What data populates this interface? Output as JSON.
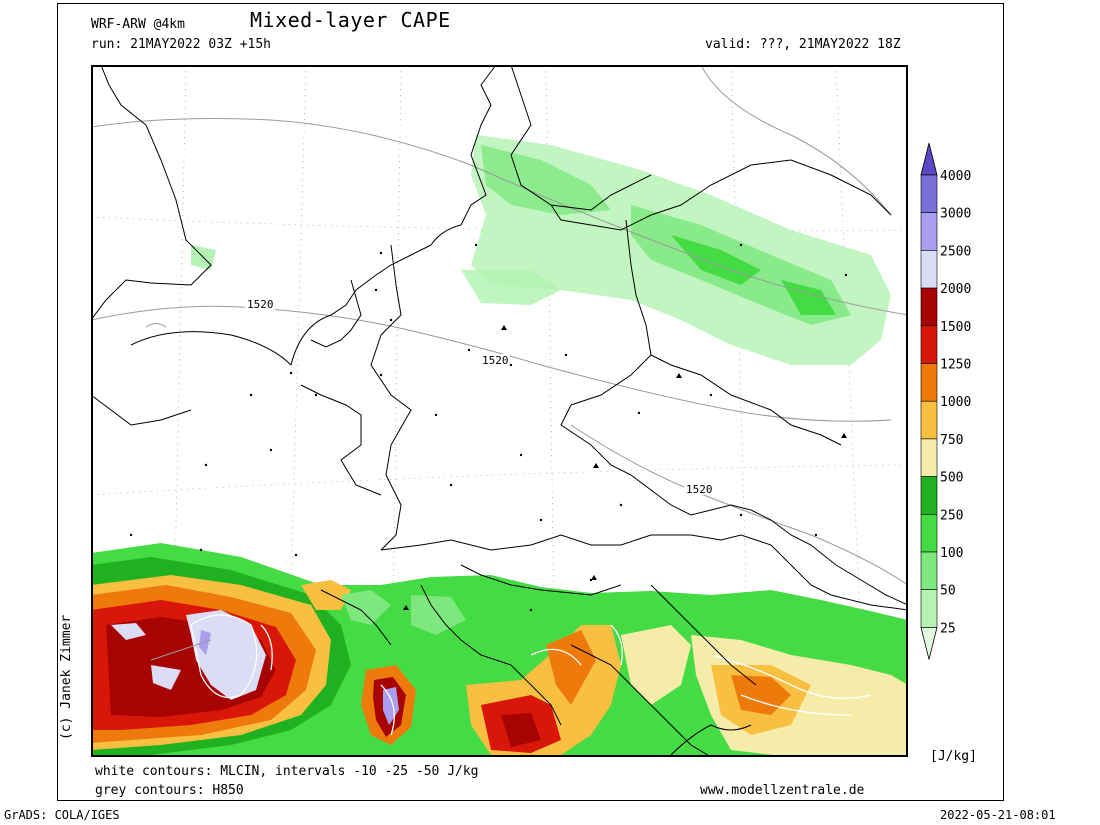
{
  "header": {
    "model": "WRF-ARW @4km",
    "title": "Mixed-layer CAPE",
    "run": "run: 21MAY2022 03Z +15h",
    "valid": "valid: ???, 21MAY2022 18Z"
  },
  "map": {
    "contour_label": "1520",
    "colors": {
      "ocean_bg": "#ffffff",
      "border": "#000000",
      "grey_contour": "#9a9a9a",
      "grid": "#9a9a9a"
    }
  },
  "legend": {
    "levels": [
      "25",
      "50",
      "100",
      "250",
      "500",
      "750",
      "1000",
      "1250",
      "1500",
      "2000",
      "2500",
      "3000",
      "4000"
    ],
    "colors": [
      "#e0fbe0",
      "#b4f3b4",
      "#7ee87e",
      "#45db45",
      "#1fb11f",
      "#f5ecaa",
      "#f8bf40",
      "#ef7a0c",
      "#d91708",
      "#a80303",
      "#dcdcf5",
      "#a99ef0",
      "#7a6fd8",
      "#5a48c4"
    ],
    "unit": "[J/kg]"
  },
  "footer": {
    "white_contours": "white contours: MLCIN, intervals -10 -25 -50 J/kg",
    "grey_contours": "grey contours: H850",
    "website": "www.modellzentrale.de",
    "copyright": "(c) Janek Zimmer",
    "grads": "GrADS: COLA/IGES",
    "timestamp": "2022-05-21-08:01"
  }
}
